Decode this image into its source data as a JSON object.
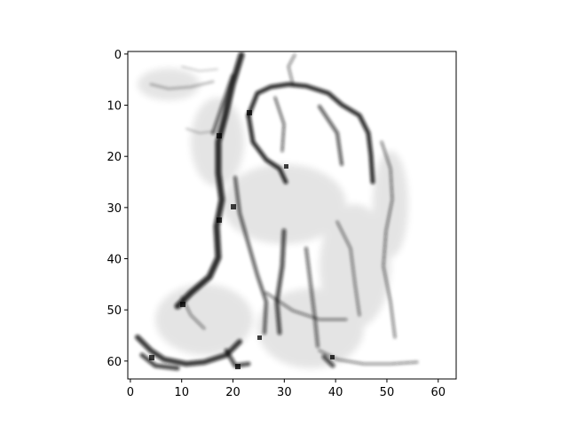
{
  "image": {
    "colormap": "gray_r",
    "pixel_grid": [
      64,
      64
    ],
    "subject": "noisy grayscale sketch-like image with dark ink strokes on white"
  },
  "axes": {
    "x_ticks": [
      "0",
      "10",
      "20",
      "30",
      "40",
      "50",
      "60"
    ],
    "y_ticks": [
      "0",
      "10",
      "20",
      "30",
      "40",
      "50",
      "60"
    ]
  }
}
